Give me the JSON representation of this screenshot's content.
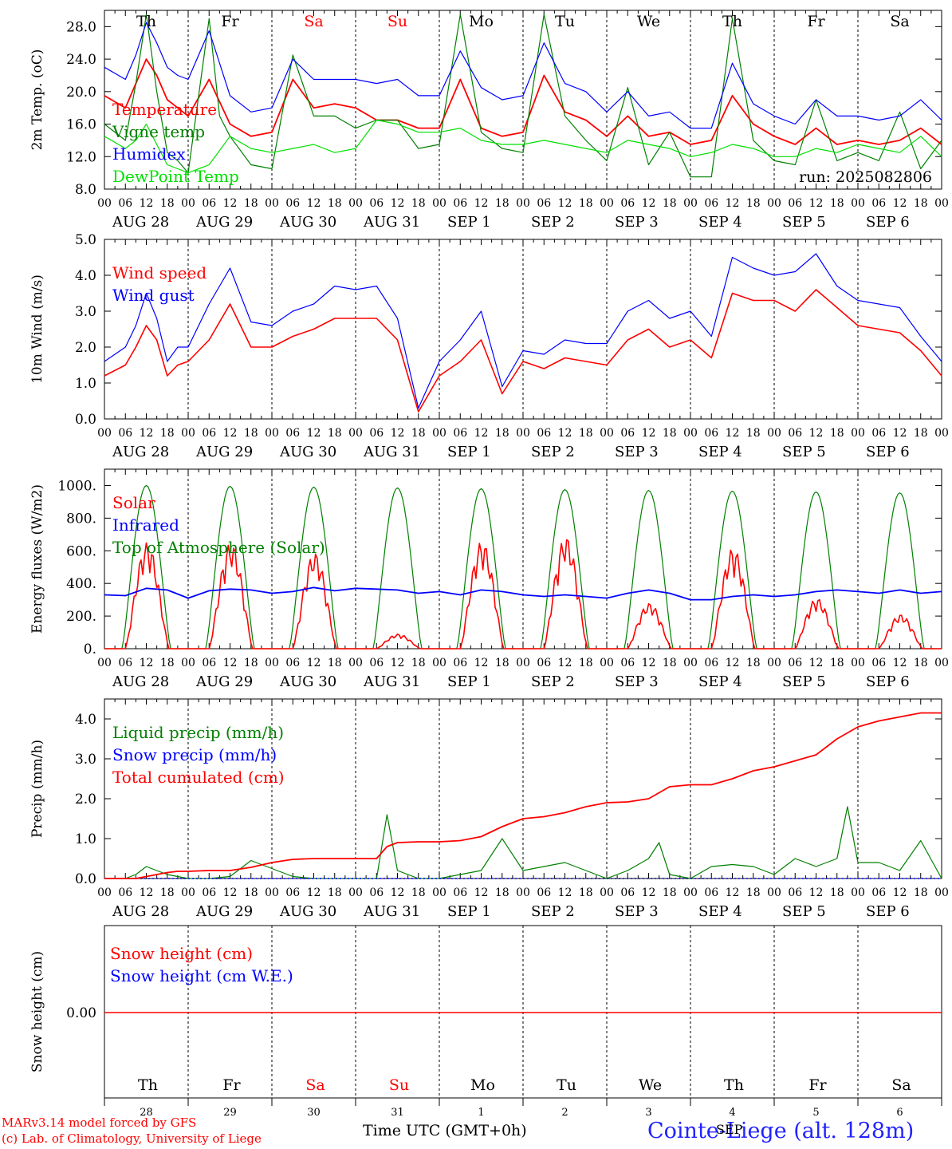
{
  "days": {
    "weekdays": [
      "Th",
      "Fr",
      "Sa",
      "Su",
      "Mo",
      "Tu",
      "We",
      "Th",
      "Fr",
      "Sa"
    ],
    "weekend_flags": [
      false,
      false,
      true,
      true,
      false,
      false,
      false,
      false,
      false,
      false
    ],
    "dates": [
      "AUG 28",
      "AUG 29",
      "AUG 30",
      "AUG 31",
      "SEP  1",
      "SEP  2",
      "SEP  3",
      "SEP  4",
      "SEP  5",
      "SEP  6"
    ],
    "day_numbers": [
      "28",
      "29",
      "30",
      "31",
      "1",
      "2",
      "3",
      "4",
      "5",
      "6"
    ],
    "hour_ticks": [
      "00",
      "06",
      "12",
      "18"
    ],
    "end_tick": "00"
  },
  "colors": {
    "red": "#ff0000",
    "green": "#008000",
    "blue": "#0000ff",
    "lightgreen": "#00e000",
    "darkgreen": "#006400",
    "axis": "#000000"
  },
  "chart_data": [
    {
      "type": "line",
      "ylabel": "2m Temp. (oC)",
      "ylim": [
        8,
        30
      ],
      "yticks": [
        "8.0",
        "12.0",
        "16.0",
        "20.0",
        "24.0",
        "28.0"
      ],
      "annotation": "run: 2025082806",
      "x_unit": "hours since AUG 28 00 UTC",
      "series": [
        {
          "name": "Temperature",
          "color": "red",
          "x": [
            0,
            6,
            9,
            12,
            15,
            18,
            21,
            24,
            30,
            36,
            42,
            48,
            54,
            60,
            66,
            72,
            78,
            84,
            90,
            96,
            102,
            108,
            114,
            120,
            126,
            132,
            138,
            144,
            150,
            156,
            162,
            168,
            174,
            180,
            186,
            192,
            198,
            204,
            210,
            216,
            222,
            228,
            234,
            240
          ],
          "y": [
            19.5,
            18.0,
            21.0,
            24.0,
            22.0,
            19.0,
            18.0,
            17.0,
            21.5,
            16.0,
            14.5,
            15.0,
            21.5,
            18.0,
            18.5,
            18.0,
            16.5,
            16.5,
            15.5,
            15.5,
            21.5,
            15.5,
            14.5,
            15.0,
            22.0,
            17.5,
            16.5,
            14.5,
            17.0,
            14.5,
            15.0,
            13.5,
            14.0,
            19.5,
            16.0,
            14.5,
            13.5,
            15.5,
            13.5,
            14.0,
            13.5,
            14.0,
            15.5,
            13.5
          ]
        },
        {
          "name": "Vigne temp",
          "color": "green",
          "x": [
            0,
            6,
            9,
            12,
            15,
            18,
            21,
            24,
            30,
            33,
            36,
            42,
            48,
            54,
            60,
            66,
            72,
            78,
            84,
            90,
            96,
            102,
            108,
            114,
            120,
            126,
            132,
            138,
            144,
            150,
            156,
            162,
            168,
            174,
            180,
            186,
            192,
            198,
            204,
            210,
            216,
            222,
            228,
            234,
            240
          ],
          "y": [
            16.0,
            14.0,
            21.0,
            29.5,
            20.0,
            12.5,
            11.5,
            10.0,
            29.0,
            17.0,
            14.5,
            11.0,
            10.5,
            24.5,
            17.0,
            17.0,
            15.5,
            16.5,
            16.5,
            13.0,
            13.5,
            29.5,
            15.0,
            13.0,
            12.5,
            29.5,
            17.0,
            14.0,
            11.5,
            20.5,
            11.0,
            15.0,
            9.5,
            9.5,
            29.0,
            14.0,
            11.5,
            11.0,
            19.0,
            11.5,
            12.5,
            11.5,
            17.5,
            10.5,
            14.0
          ]
        },
        {
          "name": "Humidex",
          "color": "blue",
          "x": [
            0,
            6,
            9,
            12,
            15,
            18,
            21,
            24,
            30,
            36,
            42,
            48,
            54,
            60,
            66,
            72,
            78,
            84,
            90,
            96,
            102,
            108,
            114,
            120,
            126,
            132,
            138,
            144,
            150,
            156,
            162,
            168,
            174,
            180,
            186,
            192,
            198,
            204,
            210,
            216,
            222,
            228,
            234,
            240
          ],
          "y": [
            23.0,
            21.5,
            24.5,
            28.5,
            26.0,
            23.0,
            22.0,
            21.5,
            27.5,
            19.5,
            17.5,
            18.0,
            24.0,
            21.5,
            21.5,
            21.5,
            21.0,
            21.5,
            19.5,
            19.5,
            25.0,
            20.5,
            19.0,
            19.5,
            26.0,
            21.0,
            20.0,
            17.5,
            20.0,
            17.0,
            17.5,
            15.5,
            15.5,
            23.5,
            18.5,
            17.0,
            16.0,
            19.0,
            17.0,
            17.0,
            16.5,
            17.0,
            19.0,
            16.5
          ]
        },
        {
          "name": "DewPoint Temp",
          "color": "lightgreen",
          "x": [
            0,
            6,
            9,
            12,
            15,
            18,
            21,
            24,
            30,
            36,
            42,
            48,
            54,
            60,
            66,
            72,
            78,
            84,
            90,
            96,
            102,
            108,
            114,
            120,
            126,
            132,
            138,
            144,
            150,
            156,
            162,
            168,
            174,
            180,
            186,
            192,
            198,
            204,
            210,
            216,
            222,
            228,
            234,
            240
          ],
          "y": [
            14.5,
            13.0,
            14.0,
            16.0,
            13.5,
            11.0,
            10.5,
            10.0,
            11.0,
            14.5,
            13.0,
            12.5,
            13.0,
            13.5,
            12.5,
            13.0,
            16.5,
            16.0,
            15.0,
            15.0,
            15.5,
            14.0,
            13.5,
            13.5,
            14.0,
            13.5,
            13.0,
            12.5,
            14.0,
            13.5,
            13.0,
            12.0,
            12.5,
            13.5,
            13.0,
            12.0,
            12.0,
            13.0,
            12.5,
            13.5,
            13.0,
            12.5,
            14.5,
            12.0
          ]
        }
      ]
    },
    {
      "type": "line",
      "ylabel": "10m Wind (m/s)",
      "ylim": [
        0,
        5
      ],
      "yticks": [
        "0.0",
        "1.0",
        "2.0",
        "3.0",
        "4.0",
        "5.0"
      ],
      "x_unit": "hours since AUG 28 00 UTC",
      "series": [
        {
          "name": "Wind speed",
          "color": "red",
          "x": [
            0,
            6,
            9,
            12,
            15,
            18,
            21,
            24,
            30,
            36,
            42,
            48,
            54,
            60,
            66,
            72,
            78,
            84,
            90,
            96,
            102,
            108,
            114,
            120,
            126,
            132,
            138,
            144,
            150,
            156,
            162,
            168,
            174,
            180,
            186,
            192,
            198,
            204,
            210,
            216,
            222,
            228,
            234,
            240
          ],
          "y": [
            1.2,
            1.5,
            2.0,
            2.6,
            2.2,
            1.2,
            1.5,
            1.6,
            2.2,
            3.2,
            2.0,
            2.0,
            2.3,
            2.5,
            2.8,
            2.8,
            2.8,
            2.2,
            0.2,
            1.2,
            1.6,
            2.2,
            0.7,
            1.6,
            1.4,
            1.7,
            1.6,
            1.5,
            2.2,
            2.5,
            2.0,
            2.2,
            1.7,
            3.5,
            3.3,
            3.3,
            3.0,
            3.6,
            3.1,
            2.6,
            2.5,
            2.4,
            1.9,
            1.2
          ]
        },
        {
          "name": "Wind gust",
          "color": "blue",
          "x": [
            0,
            6,
            9,
            12,
            15,
            18,
            21,
            24,
            30,
            36,
            42,
            48,
            54,
            60,
            66,
            72,
            78,
            84,
            90,
            96,
            102,
            108,
            114,
            120,
            126,
            132,
            138,
            144,
            150,
            156,
            162,
            168,
            174,
            180,
            186,
            192,
            198,
            204,
            210,
            216,
            222,
            228,
            234,
            240
          ],
          "y": [
            1.6,
            2.0,
            2.6,
            3.5,
            2.8,
            1.6,
            2.0,
            2.0,
            3.2,
            4.2,
            2.7,
            2.6,
            3.0,
            3.2,
            3.7,
            3.6,
            3.7,
            2.8,
            0.3,
            1.6,
            2.2,
            3.0,
            0.9,
            1.9,
            1.8,
            2.2,
            2.1,
            2.1,
            3.0,
            3.3,
            2.8,
            3.0,
            2.3,
            4.5,
            4.2,
            4.0,
            4.1,
            4.6,
            3.7,
            3.3,
            3.2,
            3.1,
            2.3,
            1.6
          ]
        }
      ]
    },
    {
      "type": "line",
      "ylabel": "Energy fluxes (W/m2)",
      "ylim": [
        0,
        1100
      ],
      "yticks": [
        "0.",
        "200.",
        "400.",
        "600.",
        "800.",
        "1000."
      ],
      "x_unit": "hours since AUG 28 00 UTC",
      "series": [
        {
          "name": "Solar",
          "color": "red",
          "daily_peak": [
            650,
            650,
            590,
            90,
            660,
            690,
            280,
            620,
            310,
            210
          ]
        },
        {
          "name": "Infrared",
          "color": "blue",
          "x": [
            0,
            6,
            12,
            18,
            24,
            30,
            36,
            42,
            48,
            54,
            60,
            66,
            72,
            78,
            84,
            90,
            96,
            102,
            108,
            114,
            120,
            126,
            132,
            138,
            144,
            150,
            156,
            162,
            168,
            174,
            180,
            186,
            192,
            198,
            204,
            210,
            216,
            222,
            228,
            234,
            240
          ],
          "y": [
            330,
            325,
            370,
            360,
            310,
            355,
            365,
            360,
            340,
            350,
            375,
            355,
            370,
            365,
            360,
            340,
            350,
            330,
            360,
            350,
            330,
            320,
            330,
            320,
            310,
            340,
            360,
            340,
            300,
            300,
            320,
            330,
            320,
            330,
            350,
            360,
            350,
            340,
            360,
            340,
            350
          ]
        },
        {
          "name": "Top of Atmosphere (Solar)",
          "color": "green",
          "daily_peak": [
            1000,
            995,
            990,
            985,
            980,
            975,
            970,
            965,
            960,
            955
          ]
        }
      ]
    },
    {
      "type": "line",
      "ylabel": "Precip (mm/h)",
      "ylim": [
        0,
        4.5
      ],
      "yticks": [
        "0.0",
        "1.0",
        "2.0",
        "3.0",
        "4.0"
      ],
      "x_unit": "hours since AUG 28 00 UTC",
      "series": [
        {
          "name": "Liquid precip (mm/h)",
          "color": "green",
          "x": [
            0,
            6,
            9,
            12,
            15,
            18,
            21,
            24,
            30,
            36,
            42,
            48,
            54,
            60,
            66,
            72,
            78,
            81,
            84,
            90,
            96,
            102,
            108,
            114,
            120,
            126,
            132,
            138,
            144,
            150,
            156,
            159,
            162,
            168,
            174,
            180,
            186,
            192,
            198,
            204,
            210,
            213,
            216,
            222,
            228,
            234,
            240
          ],
          "y": [
            0,
            0,
            0.1,
            0.3,
            0.2,
            0.1,
            0.05,
            0,
            0,
            0.05,
            0.45,
            0.25,
            0.05,
            0,
            0,
            0,
            0,
            1.6,
            0.2,
            0,
            0,
            0.1,
            0.2,
            1.0,
            0.2,
            0.3,
            0.4,
            0.2,
            0,
            0.2,
            0.5,
            0.9,
            0.1,
            0,
            0.3,
            0.35,
            0.3,
            0.1,
            0.5,
            0.3,
            0.5,
            1.8,
            0.4,
            0.4,
            0.2,
            0.95,
            0
          ]
        },
        {
          "name": "Snow precip (mm/h)",
          "color": "blue",
          "x": [
            0,
            240
          ],
          "y": [
            0,
            0
          ]
        },
        {
          "name": "Total cumulated (cm)",
          "color": "red",
          "x": [
            0,
            6,
            9,
            12,
            15,
            18,
            21,
            24,
            30,
            36,
            42,
            48,
            54,
            60,
            66,
            72,
            78,
            81,
            84,
            90,
            96,
            102,
            108,
            114,
            120,
            126,
            132,
            138,
            144,
            150,
            156,
            162,
            168,
            174,
            180,
            186,
            192,
            198,
            204,
            210,
            216,
            222,
            228,
            234,
            240
          ],
          "y": [
            0,
            0,
            0,
            0.05,
            0.1,
            0.15,
            0.18,
            0.18,
            0.2,
            0.2,
            0.28,
            0.4,
            0.48,
            0.5,
            0.5,
            0.5,
            0.5,
            0.8,
            0.9,
            0.92,
            0.92,
            0.95,
            1.05,
            1.3,
            1.5,
            1.55,
            1.65,
            1.8,
            1.9,
            1.92,
            2.0,
            2.3,
            2.35,
            2.35,
            2.5,
            2.7,
            2.8,
            2.95,
            3.1,
            3.5,
            3.8,
            3.95,
            4.05,
            4.15,
            4.15
          ]
        }
      ]
    },
    {
      "type": "line",
      "ylabel": "Snow height (cm)",
      "yticks": [
        "0.00"
      ],
      "x_unit": "hours since AUG 28 00 UTC",
      "series": [
        {
          "name": "Snow height (cm)",
          "color": "red",
          "x": [
            0,
            240
          ],
          "y": [
            0,
            0
          ]
        },
        {
          "name": "Snow height (cm W.E.)",
          "color": "blue",
          "x": [
            0,
            240
          ],
          "y": [
            0,
            0
          ]
        }
      ]
    }
  ],
  "footer": {
    "model_line": "MARv3.14 model forced by GFS",
    "lab_line": "(c) Lab. of Climatology, University of Liege",
    "x_axis_title": "Time UTC (GMT+0h)",
    "overlap_label": "SEP",
    "station": "Cointe-Liege (alt. 128m)"
  }
}
